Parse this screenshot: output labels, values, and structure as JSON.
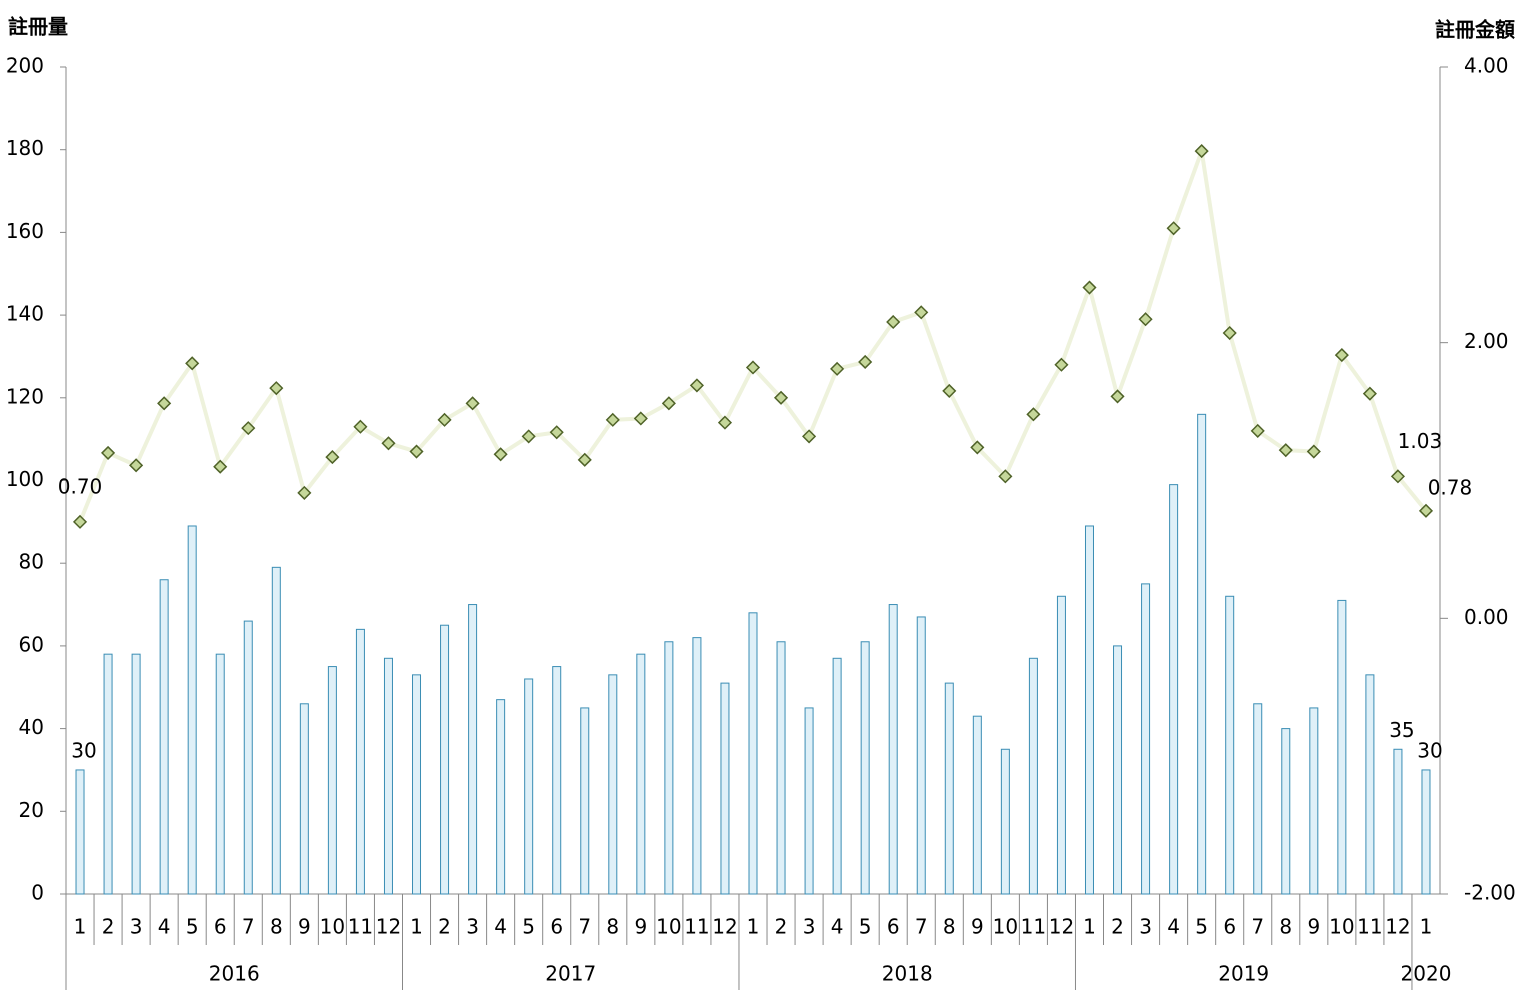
{
  "chart_data": {
    "type": "bar-line",
    "y_label": "註冊量",
    "y2_label": "註冊金額",
    "groups": [
      {
        "name": "2016",
        "categories": [
          "1",
          "2",
          "3",
          "4",
          "5",
          "6",
          "7",
          "8",
          "9",
          "10",
          "11",
          "12"
        ]
      },
      {
        "name": "2017",
        "categories": [
          "1",
          "2",
          "3",
          "4",
          "5",
          "6",
          "7",
          "8",
          "9",
          "10",
          "11",
          "12"
        ]
      },
      {
        "name": "2018",
        "categories": [
          "1",
          "2",
          "3",
          "4",
          "5",
          "6",
          "7",
          "8",
          "9",
          "10",
          "11",
          "12"
        ]
      },
      {
        "name": "2019",
        "categories": [
          "1",
          "2",
          "3",
          "4",
          "5",
          "6",
          "7",
          "8",
          "9",
          "10",
          "11",
          "12"
        ]
      },
      {
        "name": "2020",
        "categories": [
          "1"
        ]
      }
    ],
    "series": [
      {
        "name": "註冊量",
        "type": "bar",
        "color": "#dff0f8",
        "stroke": "#3a8db4",
        "values": [
          30,
          58,
          58,
          76,
          89,
          58,
          66,
          79,
          46,
          55,
          64,
          57,
          53,
          65,
          70,
          47,
          52,
          55,
          45,
          53,
          58,
          61,
          62,
          51,
          68,
          61,
          45,
          57,
          61,
          70,
          67,
          51,
          43,
          35,
          57,
          72,
          89,
          60,
          75,
          99,
          116,
          72,
          46,
          40,
          45,
          71,
          53,
          35,
          30
        ],
        "value_labels": [
          "30",
          null,
          null,
          null,
          null,
          null,
          null,
          null,
          null,
          null,
          null,
          null,
          null,
          null,
          null,
          null,
          null,
          null,
          null,
          null,
          null,
          null,
          null,
          null,
          null,
          null,
          null,
          null,
          null,
          null,
          null,
          null,
          null,
          null,
          null,
          null,
          null,
          null,
          null,
          null,
          null,
          null,
          null,
          null,
          null,
          null,
          null,
          "35",
          "30"
        ]
      },
      {
        "name": "註冊金額",
        "type": "line",
        "axis": "y2",
        "color": "#eef2dc",
        "marker_color": "#c5d79a",
        "marker_stroke": "#4f6228",
        "values": [
          0.7,
          1.2,
          1.11,
          1.56,
          1.85,
          1.1,
          1.38,
          1.67,
          0.91,
          1.17,
          1.39,
          1.27,
          1.21,
          1.44,
          1.56,
          1.19,
          1.32,
          1.35,
          1.15,
          1.44,
          1.45,
          1.56,
          1.69,
          1.42,
          1.82,
          1.6,
          1.32,
          1.81,
          1.86,
          2.15,
          2.22,
          1.65,
          1.24,
          1.03,
          1.48,
          1.84,
          2.4,
          1.61,
          2.17,
          2.83,
          3.39,
          2.07,
          1.36,
          1.22,
          1.21,
          1.91,
          1.63,
          1.03,
          0.78
        ],
        "value_labels": [
          "0.70",
          null,
          null,
          null,
          null,
          null,
          null,
          null,
          null,
          null,
          null,
          null,
          null,
          null,
          null,
          null,
          null,
          null,
          null,
          null,
          null,
          null,
          null,
          null,
          null,
          null,
          null,
          null,
          null,
          null,
          null,
          null,
          null,
          null,
          null,
          null,
          null,
          null,
          null,
          null,
          null,
          null,
          null,
          null,
          null,
          null,
          null,
          "1.03",
          "0.78"
        ]
      }
    ],
    "ylim": [
      0,
      200
    ],
    "yticks": [
      0,
      20,
      40,
      60,
      80,
      100,
      120,
      140,
      160,
      180,
      200
    ],
    "y2lim": [
      -2,
      4
    ],
    "y2ticks": [
      {
        "value": -2,
        "label": "-2.00"
      },
      {
        "value": 0,
        "label": "0.00"
      },
      {
        "value": 2,
        "label": "2.00"
      },
      {
        "value": 4,
        "label": "4.00"
      }
    ]
  }
}
